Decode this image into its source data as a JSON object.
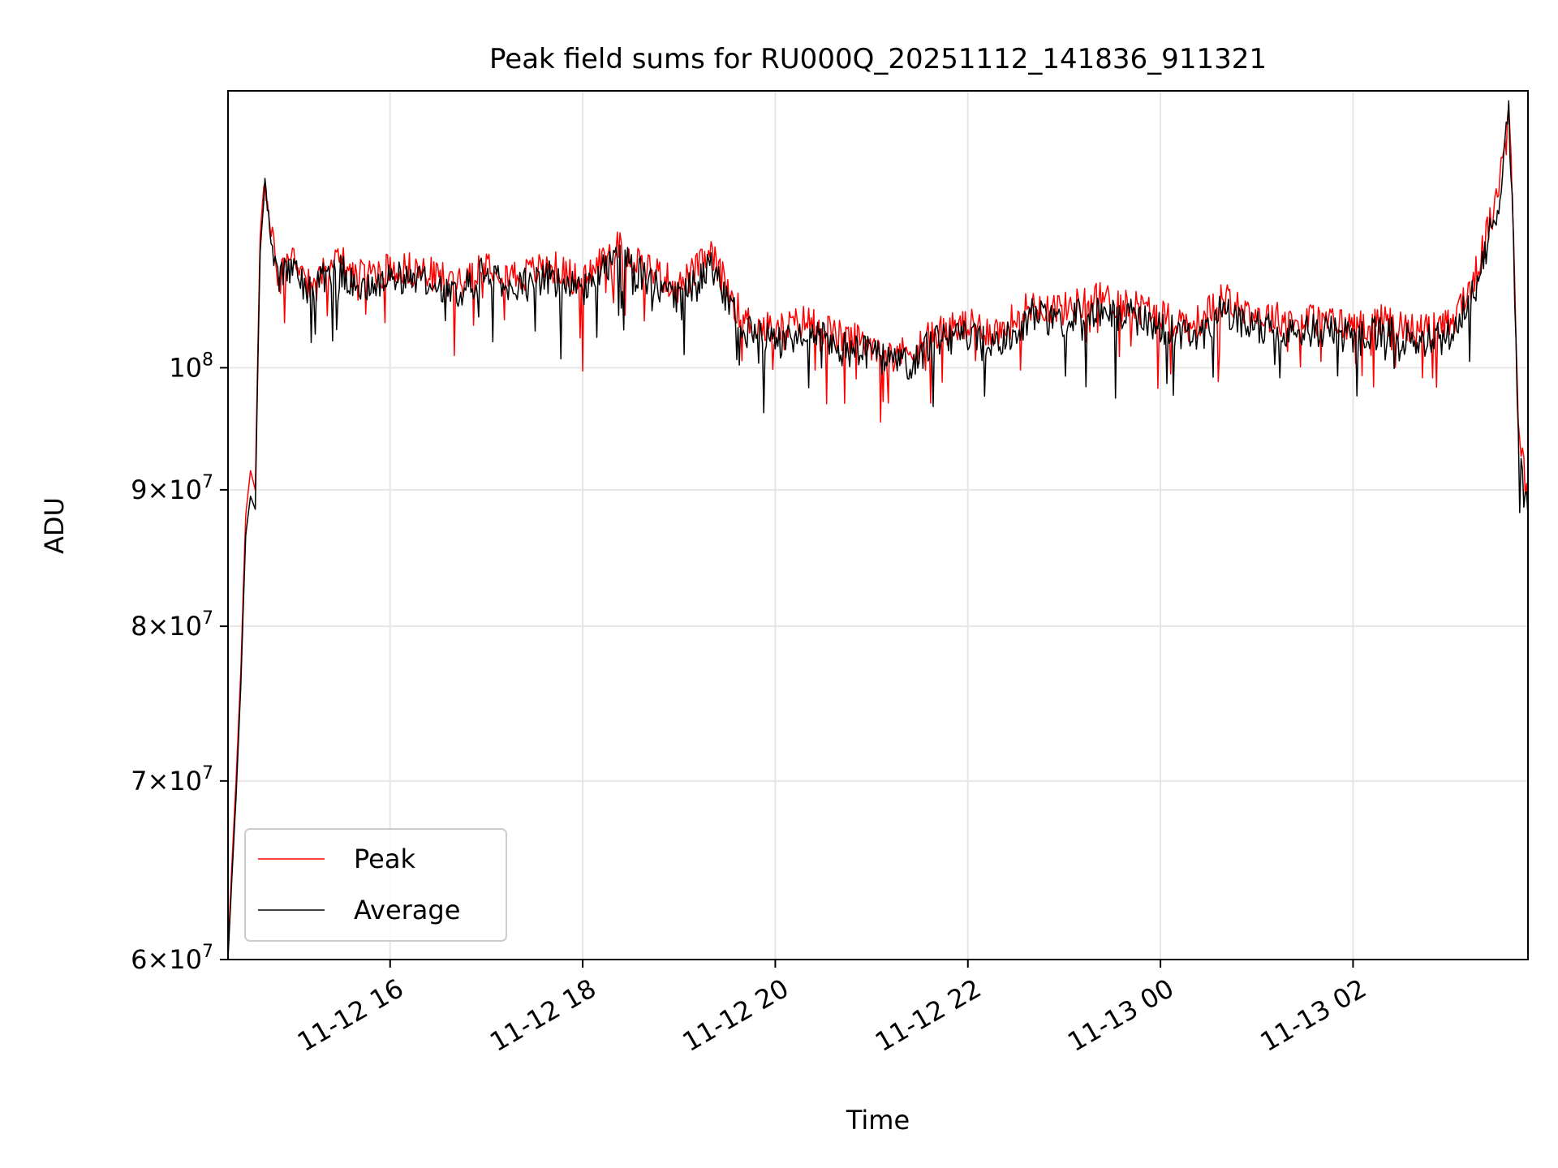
{
  "chart_data": {
    "type": "line",
    "title": "Peak field sums for RU000Q_20251112_141836_911321",
    "xlabel": "Time",
    "ylabel": "ADU",
    "yscale": "log",
    "ylim": [
      60000000,
      127000000
    ],
    "xlim": [
      "2025-11-12 14:19",
      "2025-11-13 03:49"
    ],
    "grid": true,
    "legend_position": "lower-left",
    "x_ticks": [
      {
        "x": "2025-11-12 16:00",
        "label": "11-12 16"
      },
      {
        "x": "2025-11-12 18:00",
        "label": "11-12 18"
      },
      {
        "x": "2025-11-12 20:00",
        "label": "11-12 20"
      },
      {
        "x": "2025-11-12 22:00",
        "label": "11-12 22"
      },
      {
        "x": "2025-11-13 00:00",
        "label": "11-13 00"
      },
      {
        "x": "2025-11-13 02:00",
        "label": "11-13 02"
      }
    ],
    "y_ticks": [
      {
        "value": 60000000,
        "mant": "6",
        "exp": "7"
      },
      {
        "value": 70000000,
        "mant": "7",
        "exp": "7"
      },
      {
        "value": 80000000,
        "mant": "8",
        "exp": "7"
      },
      {
        "value": 90000000,
        "mant": "9",
        "exp": "7"
      },
      {
        "value": 100000000,
        "mant": "",
        "exp": "8"
      }
    ],
    "series": [
      {
        "name": "Peak",
        "color": "#ff0000",
        "points": [
          [
            "2025-11-12 14:19",
            60500000
          ],
          [
            "2025-11-12 14:24",
            70000000
          ],
          [
            "2025-11-12 14:27",
            77000000
          ],
          [
            "2025-11-12 14:30",
            88000000
          ],
          [
            "2025-11-12 14:33",
            91500000
          ],
          [
            "2025-11-12 14:36",
            90000000
          ],
          [
            "2025-11-12 14:39",
            112000000
          ],
          [
            "2025-11-12 14:42",
            118500000
          ],
          [
            "2025-11-12 14:45",
            113000000
          ],
          [
            "2025-11-12 14:50",
            109000000
          ],
          [
            "2025-11-12 15:00",
            110500000
          ],
          [
            "2025-11-12 15:10",
            108000000
          ],
          [
            "2025-11-12 15:20",
            109500000
          ],
          [
            "2025-11-12 15:30",
            110000000
          ],
          [
            "2025-11-12 15:40",
            108500000
          ],
          [
            "2025-11-12 16:00",
            109500000
          ],
          [
            "2025-11-12 16:20",
            109000000
          ],
          [
            "2025-11-12 16:40",
            108000000
          ],
          [
            "2025-11-12 17:00",
            110000000
          ],
          [
            "2025-11-12 17:20",
            108500000
          ],
          [
            "2025-11-12 17:40",
            109500000
          ],
          [
            "2025-11-12 18:00",
            108000000
          ],
          [
            "2025-11-12 18:20",
            111500000
          ],
          [
            "2025-11-12 18:40",
            109500000
          ],
          [
            "2025-11-12 19:00",
            107500000
          ],
          [
            "2025-11-12 19:20",
            110500000
          ],
          [
            "2025-11-12 19:40",
            104500000
          ],
          [
            "2025-11-12 20:00",
            103500000
          ],
          [
            "2025-11-12 20:20",
            104500000
          ],
          [
            "2025-11-12 20:40",
            103000000
          ],
          [
            "2025-11-12 21:00",
            102500000
          ],
          [
            "2025-11-12 21:20",
            101500000
          ],
          [
            "2025-11-12 21:40",
            103500000
          ],
          [
            "2025-11-12 22:00",
            104000000
          ],
          [
            "2025-11-12 22:20",
            103500000
          ],
          [
            "2025-11-12 22:40",
            106000000
          ],
          [
            "2025-11-12 23:00",
            105500000
          ],
          [
            "2025-11-12 23:20",
            106500000
          ],
          [
            "2025-11-12 23:40",
            106000000
          ],
          [
            "2025-11-13 00:00",
            105000000
          ],
          [
            "2025-11-13 00:20",
            104000000
          ],
          [
            "2025-11-13 00:40",
            106500000
          ],
          [
            "2025-11-13 01:00",
            105000000
          ],
          [
            "2025-11-13 01:20",
            104500000
          ],
          [
            "2025-11-13 01:40",
            104500000
          ],
          [
            "2025-11-13 02:00",
            104000000
          ],
          [
            "2025-11-13 02:20",
            104500000
          ],
          [
            "2025-11-13 02:40",
            103500000
          ],
          [
            "2025-11-13 03:00",
            104000000
          ],
          [
            "2025-11-13 03:15",
            108000000
          ],
          [
            "2025-11-13 03:30",
            116000000
          ],
          [
            "2025-11-13 03:37",
            127000000
          ],
          [
            "2025-11-13 03:40",
            113000000
          ],
          [
            "2025-11-13 03:43",
            96000000
          ],
          [
            "2025-11-13 03:49",
            89000000
          ]
        ]
      },
      {
        "name": "Average",
        "color": "#000000",
        "points": [
          [
            "2025-11-12 14:19",
            60000000
          ],
          [
            "2025-11-12 14:24",
            69000000
          ],
          [
            "2025-11-12 14:27",
            76000000
          ],
          [
            "2025-11-12 14:30",
            86500000
          ],
          [
            "2025-11-12 14:33",
            89500000
          ],
          [
            "2025-11-12 14:36",
            88500000
          ],
          [
            "2025-11-12 14:39",
            110500000
          ],
          [
            "2025-11-12 14:42",
            117000000
          ],
          [
            "2025-11-12 14:45",
            112000000
          ],
          [
            "2025-11-12 14:50",
            108000000
          ],
          [
            "2025-11-12 15:00",
            109500000
          ],
          [
            "2025-11-12 15:10",
            107000000
          ],
          [
            "2025-11-12 15:20",
            108500000
          ],
          [
            "2025-11-12 15:30",
            109000000
          ],
          [
            "2025-11-12 15:40",
            107500000
          ],
          [
            "2025-11-12 16:00",
            108500000
          ],
          [
            "2025-11-12 16:20",
            108000000
          ],
          [
            "2025-11-12 16:40",
            107000000
          ],
          [
            "2025-11-12 17:00",
            109000000
          ],
          [
            "2025-11-12 17:20",
            107500000
          ],
          [
            "2025-11-12 17:40",
            108500000
          ],
          [
            "2025-11-12 18:00",
            107000000
          ],
          [
            "2025-11-12 18:20",
            110500000
          ],
          [
            "2025-11-12 18:40",
            108500000
          ],
          [
            "2025-11-12 19:00",
            106500000
          ],
          [
            "2025-11-12 19:20",
            109500000
          ],
          [
            "2025-11-12 19:40",
            103500000
          ],
          [
            "2025-11-12 20:00",
            102500000
          ],
          [
            "2025-11-12 20:20",
            103500000
          ],
          [
            "2025-11-12 20:40",
            102000000
          ],
          [
            "2025-11-12 21:00",
            101500000
          ],
          [
            "2025-11-12 21:20",
            100500000
          ],
          [
            "2025-11-12 21:40",
            102500000
          ],
          [
            "2025-11-12 22:00",
            103000000
          ],
          [
            "2025-11-12 22:20",
            102500000
          ],
          [
            "2025-11-12 22:40",
            105000000
          ],
          [
            "2025-11-12 23:00",
            104500000
          ],
          [
            "2025-11-12 23:20",
            105500000
          ],
          [
            "2025-11-12 23:40",
            105000000
          ],
          [
            "2025-11-13 00:00",
            104000000
          ],
          [
            "2025-11-13 00:20",
            103000000
          ],
          [
            "2025-11-13 00:40",
            105500000
          ],
          [
            "2025-11-13 01:00",
            104000000
          ],
          [
            "2025-11-13 01:20",
            103500000
          ],
          [
            "2025-11-13 01:40",
            103500000
          ],
          [
            "2025-11-13 02:00",
            103000000
          ],
          [
            "2025-11-13 02:20",
            103500000
          ],
          [
            "2025-11-13 02:40",
            102500000
          ],
          [
            "2025-11-13 03:00",
            103000000
          ],
          [
            "2025-11-13 03:15",
            107000000
          ],
          [
            "2025-11-13 03:30",
            115000000
          ],
          [
            "2025-11-13 03:37",
            125000000
          ],
          [
            "2025-11-13 03:40",
            111500000
          ],
          [
            "2025-11-13 03:43",
            95000000
          ],
          [
            "2025-11-13 03:49",
            88000000
          ]
        ]
      }
    ]
  }
}
